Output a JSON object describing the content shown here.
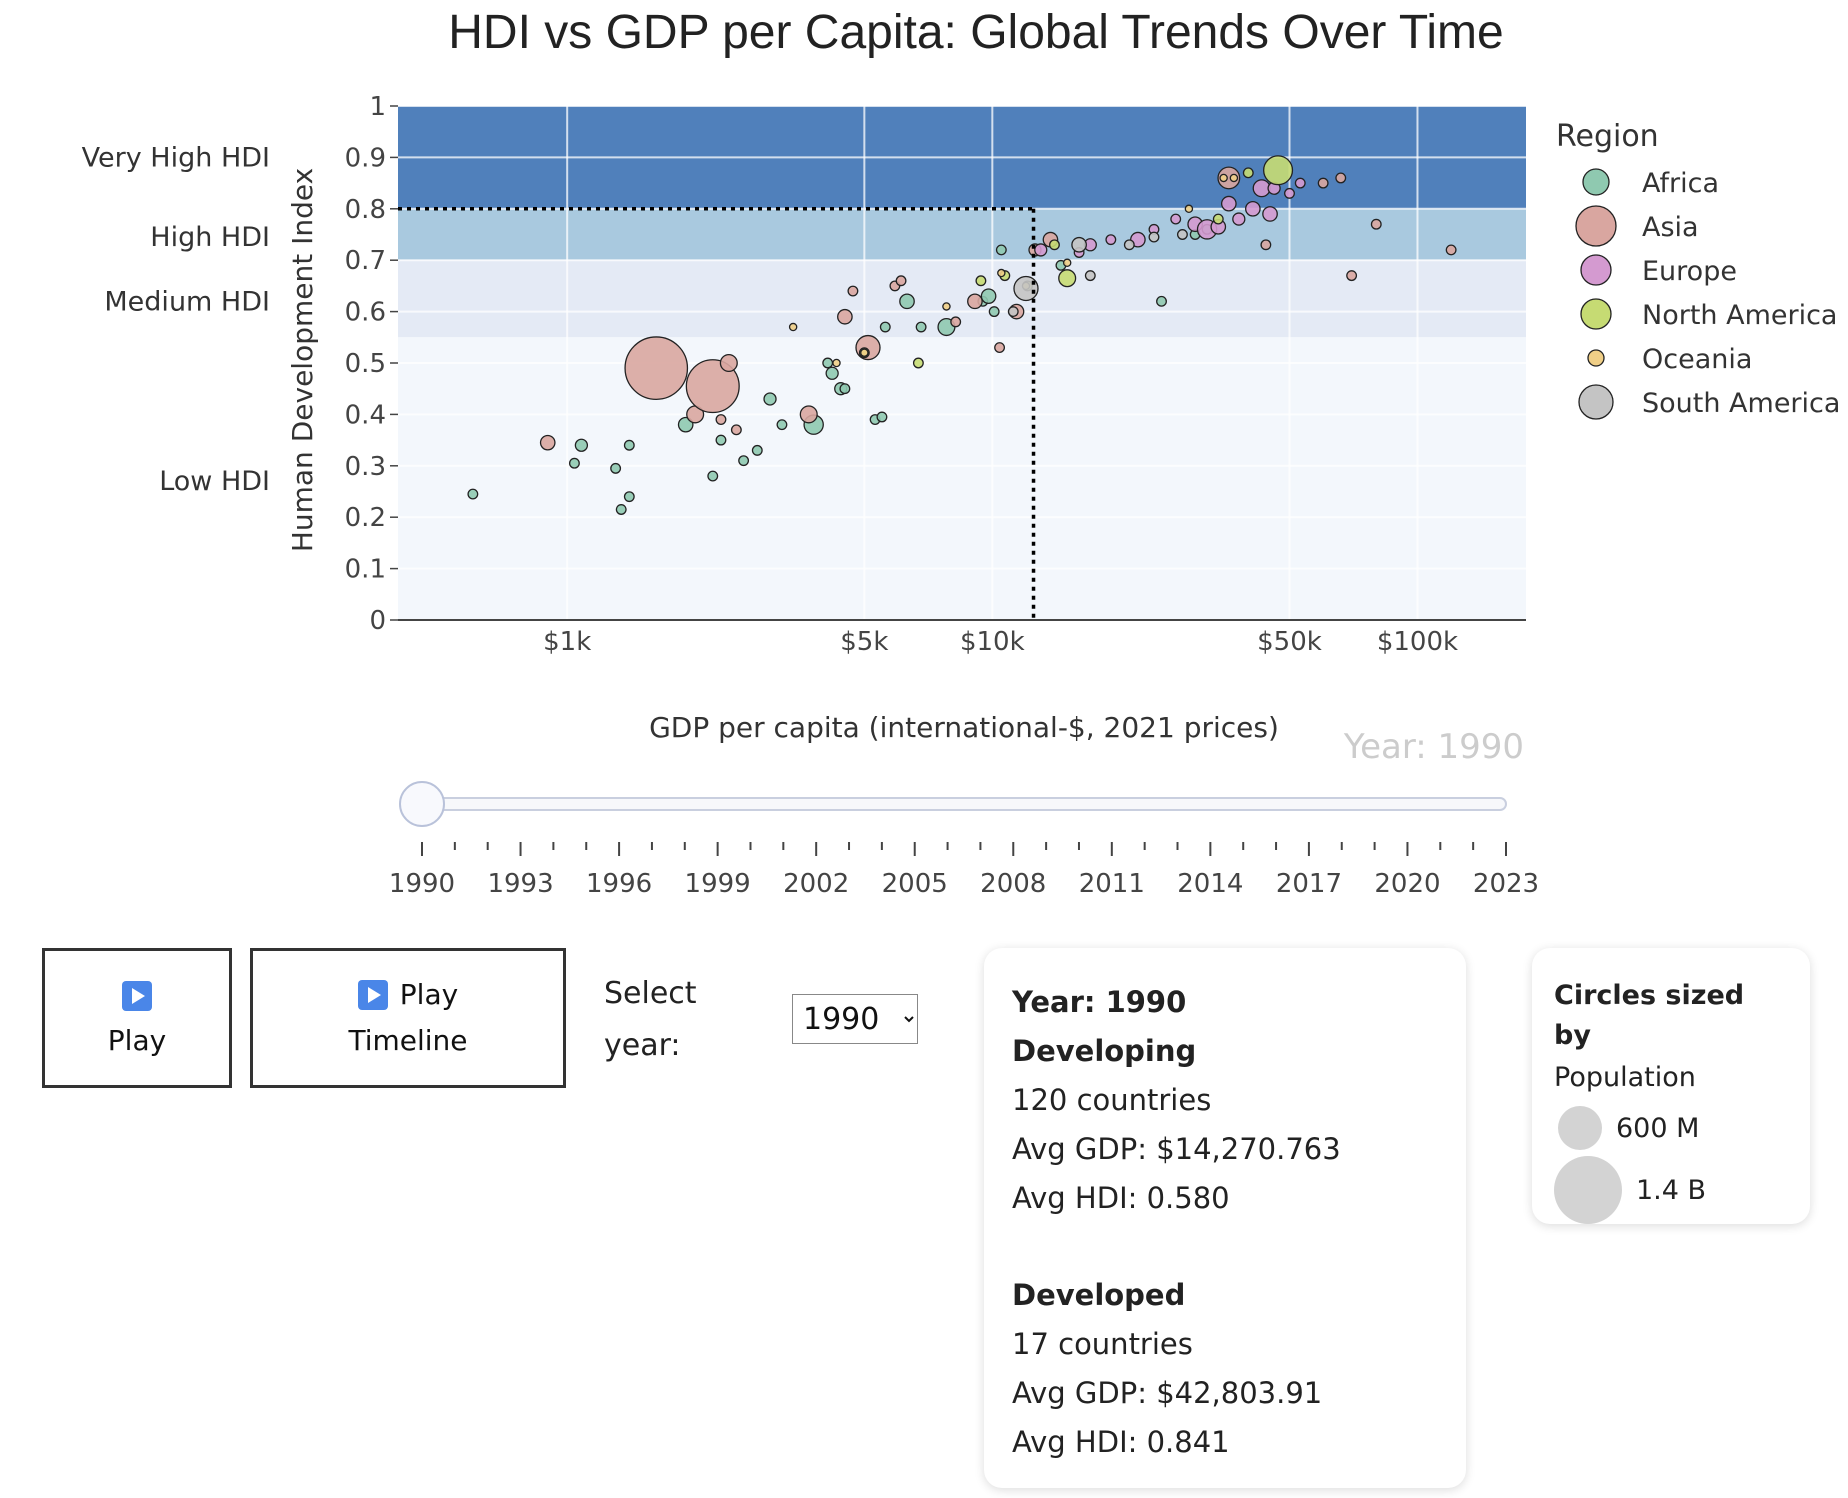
{
  "chart_data": {
    "type": "scatter",
    "title": "HDI vs GDP per Capita: Global Trends Over Time",
    "xlabel": "GDP per capita (international-$, 2021 prices)",
    "ylabel": "Human Development Index",
    "x_scale": "log",
    "xlim": [
      400,
      180000
    ],
    "ylim": [
      0,
      1
    ],
    "x_ticks": [
      1000,
      5000,
      10000,
      50000,
      100000
    ],
    "x_tick_labels": [
      "$1k",
      "$5k",
      "$10k",
      "$50k",
      "$100k"
    ],
    "y_ticks": [
      0,
      0.1,
      0.2,
      0.3,
      0.4,
      0.5,
      0.6,
      0.7,
      0.8,
      0.9,
      1
    ],
    "y_tick_labels": [
      "0",
      "0.1",
      "0.2",
      "0.3",
      "0.4",
      "0.5",
      "0.6",
      "0.7",
      "0.8",
      "0.9",
      "1"
    ],
    "grid": true,
    "bands": [
      {
        "label": "Very High HDI",
        "from": 0.8,
        "to": 1.0,
        "color": "#5080bb",
        "label_y": 0.9
      },
      {
        "label": "High HDI",
        "from": 0.7,
        "to": 0.8,
        "color": "#a9c9df",
        "label_y": 0.745
      },
      {
        "label": "Medium HDI",
        "from": 0.55,
        "to": 0.7,
        "color": "#e4eaf5",
        "label_y": 0.62
      },
      {
        "label": "Low HDI",
        "from": 0,
        "to": 0.55,
        "color": "#f3f7fc",
        "label_y": 0.27
      }
    ],
    "reference_lines": {
      "x": 12500,
      "y": 0.8,
      "style": "dotted"
    },
    "legend": {
      "title": "Region",
      "position": "right"
    },
    "colors": {
      "Africa": "#8fc9b0",
      "Asia": "#d9a6a0",
      "Europe": "#d49ad0",
      "North America": "#c6db73",
      "Oceania": "#f0cf87",
      "South America": "#c4c4c4"
    },
    "series": [
      {
        "name": "Africa",
        "points": [
          [
            600,
            0.245,
            4
          ],
          [
            1040,
            0.305,
            4
          ],
          [
            1080,
            0.34,
            5
          ],
          [
            1300,
            0.295,
            4
          ],
          [
            1340,
            0.215,
            4
          ],
          [
            1400,
            0.24,
            4
          ],
          [
            1400,
            0.34,
            4
          ],
          [
            1900,
            0.38,
            6
          ],
          [
            2200,
            0.28,
            4
          ],
          [
            2300,
            0.35,
            4
          ],
          [
            2600,
            0.31,
            4
          ],
          [
            2800,
            0.33,
            4
          ],
          [
            3000,
            0.43,
            5
          ],
          [
            3200,
            0.38,
            4
          ],
          [
            3800,
            0.38,
            8
          ],
          [
            4100,
            0.5,
            4
          ],
          [
            4200,
            0.48,
            5
          ],
          [
            4400,
            0.45,
            5
          ],
          [
            4500,
            0.45,
            4
          ],
          [
            5300,
            0.39,
            4
          ],
          [
            5500,
            0.395,
            4
          ],
          [
            5600,
            0.57,
            4
          ],
          [
            6300,
            0.62,
            6
          ],
          [
            6800,
            0.57,
            4
          ],
          [
            7800,
            0.57,
            7
          ],
          [
            9500,
            0.62,
            4
          ],
          [
            9800,
            0.63,
            6
          ],
          [
            10100,
            0.6,
            4
          ],
          [
            10500,
            0.72,
            4
          ],
          [
            14500,
            0.69,
            4
          ],
          [
            25000,
            0.62,
            4
          ],
          [
            30000,
            0.75,
            4
          ],
          [
            32000,
            0.76,
            4
          ]
        ]
      },
      {
        "name": "Asia",
        "points": [
          [
            900,
            0.345,
            6
          ],
          [
            1620,
            0.49,
            26
          ],
          [
            2000,
            0.4,
            7
          ],
          [
            2200,
            0.455,
            22
          ],
          [
            2300,
            0.39,
            4
          ],
          [
            2400,
            0.5,
            7
          ],
          [
            2500,
            0.37,
            4
          ],
          [
            3700,
            0.4,
            7
          ],
          [
            4500,
            0.59,
            6
          ],
          [
            4700,
            0.64,
            4
          ],
          [
            5100,
            0.53,
            10
          ],
          [
            5900,
            0.65,
            4
          ],
          [
            6100,
            0.66,
            4
          ],
          [
            8200,
            0.58,
            4
          ],
          [
            9100,
            0.62,
            6
          ],
          [
            10400,
            0.53,
            4
          ],
          [
            11400,
            0.6,
            6
          ],
          [
            12600,
            0.72,
            5
          ],
          [
            13700,
            0.74,
            6
          ],
          [
            36000,
            0.86,
            9
          ],
          [
            44000,
            0.73,
            4
          ],
          [
            60000,
            0.85,
            4
          ],
          [
            66000,
            0.86,
            4
          ],
          [
            70000,
            0.67,
            4
          ],
          [
            80000,
            0.77,
            4
          ],
          [
            120000,
            0.72,
            4
          ]
        ]
      },
      {
        "name": "Europe",
        "points": [
          [
            13000,
            0.72,
            5
          ],
          [
            16000,
            0.715,
            4
          ],
          [
            17000,
            0.73,
            5
          ],
          [
            19000,
            0.74,
            4
          ],
          [
            22000,
            0.74,
            6
          ],
          [
            24000,
            0.76,
            4
          ],
          [
            27000,
            0.78,
            4
          ],
          [
            30000,
            0.77,
            6
          ],
          [
            32000,
            0.76,
            8
          ],
          [
            34000,
            0.765,
            6
          ],
          [
            36000,
            0.81,
            6
          ],
          [
            38000,
            0.78,
            5
          ],
          [
            41000,
            0.8,
            6
          ],
          [
            43000,
            0.84,
            7
          ],
          [
            46000,
            0.84,
            5
          ],
          [
            50000,
            0.83,
            4
          ],
          [
            45000,
            0.79,
            6
          ],
          [
            53000,
            0.85,
            4
          ]
        ]
      },
      {
        "name": "North America",
        "points": [
          [
            5000,
            0.52,
            4
          ],
          [
            6700,
            0.5,
            4
          ],
          [
            9400,
            0.66,
            4
          ],
          [
            10700,
            0.67,
            4
          ],
          [
            12100,
            0.65,
            4
          ],
          [
            15000,
            0.665,
            7
          ],
          [
            14000,
            0.73,
            4
          ],
          [
            34000,
            0.78,
            4
          ],
          [
            40000,
            0.87,
            4
          ],
          [
            47000,
            0.875,
            12
          ]
        ]
      },
      {
        "name": "Oceania",
        "points": [
          [
            3400,
            0.57,
            3
          ],
          [
            4300,
            0.5,
            3
          ],
          [
            5000,
            0.52,
            3
          ],
          [
            7800,
            0.61,
            3
          ],
          [
            10500,
            0.675,
            3
          ],
          [
            12000,
            0.65,
            3
          ],
          [
            15000,
            0.695,
            3
          ],
          [
            29000,
            0.8,
            3
          ],
          [
            35000,
            0.86,
            3
          ],
          [
            37000,
            0.86,
            3
          ]
        ]
      },
      {
        "name": "South America",
        "points": [
          [
            11200,
            0.6,
            4
          ],
          [
            12000,
            0.645,
            10
          ],
          [
            16000,
            0.73,
            6
          ],
          [
            17000,
            0.67,
            4
          ],
          [
            21000,
            0.73,
            4
          ],
          [
            24000,
            0.745,
            4
          ],
          [
            28000,
            0.75,
            4
          ]
        ]
      }
    ]
  },
  "slider": {
    "current_label": "Year: 1990",
    "value": 1990,
    "min": 1990,
    "max": 2023,
    "labels": [
      "1990",
      "1993",
      "1996",
      "1999",
      "2002",
      "2005",
      "2008",
      "2011",
      "2014",
      "2017",
      "2020",
      "2023"
    ]
  },
  "controls": {
    "play_label": "Play",
    "timeline_label_1": "Play",
    "timeline_label_2": "Timeline",
    "select_label": "Select year:",
    "selected_year": "1990"
  },
  "stats": {
    "year_line": "Year: 1990",
    "developing": {
      "title": "Developing",
      "countries": "120 countries",
      "avg_gdp": "Avg GDP: $14,270.763",
      "avg_hdi": "Avg HDI: 0.580"
    },
    "developed": {
      "title": "Developed",
      "countries": "17 countries",
      "avg_gdp": "Avg GDP: $42,803.91",
      "avg_hdi": "Avg HDI: 0.841"
    }
  },
  "size_legend": {
    "title": "Circles sized by",
    "subtitle": "Population",
    "small_label": "600 M",
    "large_label": "1.4 B"
  }
}
